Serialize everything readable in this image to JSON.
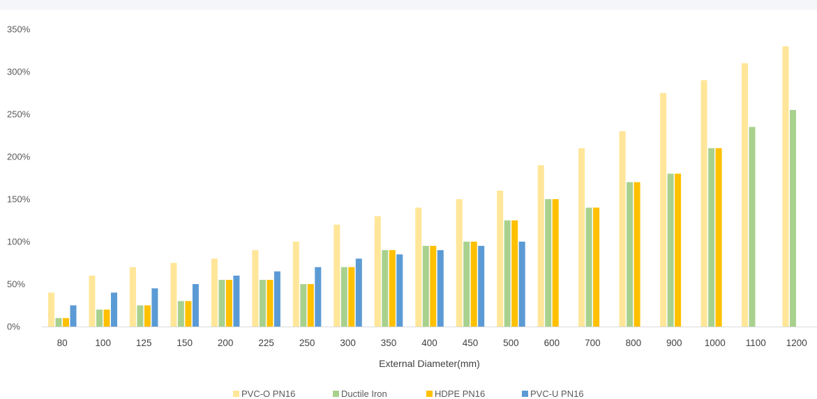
{
  "chart_data": {
    "type": "bar",
    "title": "",
    "xlabel": "External Diameter(mm)",
    "ylabel": "",
    "ylim": [
      0,
      3.5
    ],
    "yticks": [
      "0%",
      "50%",
      "100%",
      "150%",
      "200%",
      "250%",
      "300%",
      "350%"
    ],
    "categories": [
      "80",
      "100",
      "125",
      "150",
      "200",
      "225",
      "250",
      "300",
      "350",
      "400",
      "450",
      "500",
      "600",
      "700",
      "800",
      "900",
      "1000",
      "1100",
      "1200"
    ],
    "series": [
      {
        "name": "PVC-O PN16",
        "color": "#ffe699",
        "values": [
          0.4,
          0.6,
          0.7,
          0.75,
          0.8,
          0.9,
          1.0,
          1.2,
          1.3,
          1.4,
          1.5,
          1.6,
          1.9,
          2.1,
          2.3,
          2.75,
          2.9,
          3.1,
          3.3
        ]
      },
      {
        "name": "Ductile Iron",
        "color": "#a9d18e",
        "values": [
          0.1,
          0.2,
          0.25,
          0.3,
          0.55,
          0.55,
          0.5,
          0.7,
          0.9,
          0.95,
          1.0,
          1.25,
          1.5,
          1.4,
          1.7,
          1.8,
          2.1,
          2.35,
          2.55
        ]
      },
      {
        "name": "HDPE PN16",
        "color": "#ffc000",
        "values": [
          0.1,
          0.2,
          0.25,
          0.3,
          0.55,
          0.55,
          0.5,
          0.7,
          0.9,
          0.95,
          1.0,
          1.25,
          1.5,
          1.4,
          1.7,
          1.8,
          2.1,
          null,
          null
        ]
      },
      {
        "name": "PVC-U PN16",
        "color": "#5b9bd5",
        "values": [
          0.25,
          0.4,
          0.45,
          0.5,
          0.6,
          0.65,
          0.7,
          0.8,
          0.85,
          0.9,
          0.95,
          1.0,
          null,
          null,
          null,
          null,
          null,
          null,
          null
        ]
      }
    ],
    "grid": false,
    "legend_position": "bottom"
  }
}
